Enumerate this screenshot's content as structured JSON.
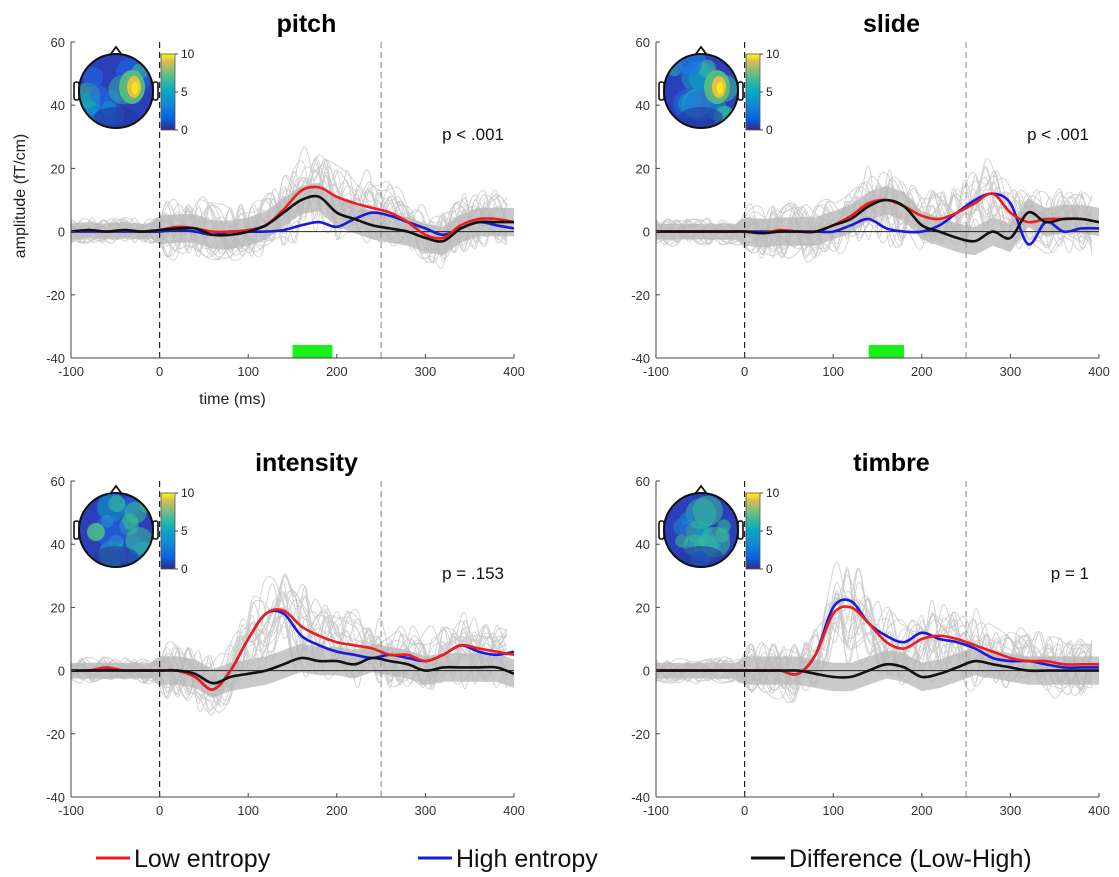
{
  "colors": {
    "low": "#ee1c1c",
    "high": "#1a1adb",
    "diff": "#111111",
    "band": "#b7b7b7",
    "subjects": "#c9c9c9",
    "sig": "#19f019"
  },
  "legend": [
    {
      "label": "Low entropy",
      "series": "low"
    },
    {
      "label": "High entropy",
      "series": "high"
    },
    {
      "label": "Difference (Low-High)",
      "series": "diff"
    }
  ],
  "chart_data": [
    {
      "type": "line",
      "title": "pitch",
      "xlabel": "time (ms)",
      "ylabel": "amplitude (fT/cm)",
      "xlim": [
        -100,
        400
      ],
      "ylim": [
        -40,
        60
      ],
      "xticks": [
        -100,
        0,
        100,
        200,
        300,
        400
      ],
      "yticks": [
        -40,
        -20,
        0,
        20,
        40,
        60
      ],
      "vlines": [
        0,
        250
      ],
      "annotation": "p < .001",
      "significant_window": [
        150,
        195
      ],
      "colorbar": {
        "min": 0,
        "mid": 5,
        "max": 10,
        "ticks": [
          "10",
          "5",
          "0"
        ]
      },
      "topomap": {
        "hotspot": "right",
        "intensity": "high"
      },
      "series": [
        {
          "key": "low",
          "name": "Low entropy",
          "x": [
            -100,
            -80,
            -60,
            -40,
            -20,
            0,
            20,
            40,
            60,
            80,
            100,
            120,
            140,
            160,
            180,
            200,
            220,
            240,
            260,
            280,
            300,
            320,
            340,
            360,
            380,
            400
          ],
          "values": [
            0,
            0.5,
            0,
            0.5,
            0,
            0.5,
            1.5,
            1,
            0,
            0,
            0.5,
            2,
            7,
            13,
            14,
            11,
            9,
            7.5,
            6,
            3,
            -1,
            -2,
            2,
            4,
            4,
            3
          ]
        },
        {
          "key": "high",
          "name": "High entropy",
          "x": [
            -100,
            -80,
            -60,
            -40,
            -20,
            0,
            20,
            40,
            60,
            80,
            100,
            120,
            140,
            160,
            180,
            200,
            220,
            240,
            260,
            280,
            300,
            320,
            340,
            360,
            380,
            400
          ],
          "values": [
            0,
            0,
            0,
            0,
            0,
            0,
            0.5,
            0,
            -1,
            0,
            0,
            0,
            0.5,
            2,
            3,
            1.5,
            4,
            6,
            5,
            3,
            1,
            -1,
            1,
            3,
            2,
            1
          ]
        },
        {
          "key": "diff",
          "name": "Difference (Low-High)",
          "x": [
            -100,
            -80,
            -60,
            -40,
            -20,
            0,
            20,
            40,
            60,
            80,
            100,
            120,
            140,
            160,
            180,
            200,
            220,
            240,
            260,
            280,
            300,
            320,
            340,
            360,
            380,
            400
          ],
          "values": [
            0,
            0.5,
            0,
            0.5,
            0,
            0.5,
            1,
            1,
            -1,
            -1,
            0,
            2,
            6,
            10,
            11,
            6,
            4,
            2,
            1,
            0,
            -2,
            -3,
            1,
            3,
            3,
            3
          ]
        }
      ]
    },
    {
      "type": "line",
      "title": "slide",
      "xlabel": "",
      "ylabel": "",
      "xlim": [
        -100,
        400
      ],
      "ylim": [
        -40,
        60
      ],
      "xticks": [
        -100,
        0,
        100,
        200,
        300,
        400
      ],
      "yticks": [
        -40,
        -20,
        0,
        20,
        40,
        60
      ],
      "vlines": [
        0,
        250
      ],
      "annotation": "p < .001",
      "significant_window": [
        140,
        180
      ],
      "colorbar": {
        "min": 0,
        "mid": 5,
        "max": 10,
        "ticks": [
          "10",
          "5",
          "0"
        ]
      },
      "topomap": {
        "hotspot": "right",
        "intensity": "high"
      },
      "series": [
        {
          "key": "low",
          "name": "Low entropy",
          "x": [
            -100,
            -80,
            -60,
            -40,
            -20,
            0,
            20,
            40,
            60,
            80,
            100,
            120,
            140,
            160,
            180,
            200,
            220,
            240,
            260,
            280,
            300,
            320,
            340,
            360,
            380,
            400
          ],
          "values": [
            0,
            0,
            0,
            0,
            0,
            0,
            -0.5,
            0.5,
            0,
            0,
            2,
            5,
            9,
            10,
            8,
            5,
            4,
            6,
            9,
            12,
            6,
            3,
            4,
            4,
            4,
            3
          ]
        },
        {
          "key": "high",
          "name": "High entropy",
          "x": [
            -100,
            -80,
            -60,
            -40,
            -20,
            0,
            20,
            40,
            60,
            80,
            100,
            120,
            140,
            160,
            180,
            200,
            220,
            240,
            260,
            280,
            300,
            320,
            340,
            360,
            380,
            400
          ],
          "values": [
            0,
            0,
            0,
            0,
            0,
            0,
            0,
            0,
            0,
            0,
            0,
            2,
            4,
            1,
            0,
            0,
            2,
            6,
            10,
            12,
            9,
            -4,
            3,
            0,
            1,
            1
          ]
        },
        {
          "key": "diff",
          "name": "Difference (Low-High)",
          "x": [
            -100,
            -80,
            -60,
            -40,
            -20,
            0,
            20,
            40,
            60,
            80,
            100,
            120,
            140,
            160,
            180,
            200,
            220,
            240,
            260,
            280,
            300,
            320,
            340,
            360,
            380,
            400
          ],
          "values": [
            0,
            0,
            0,
            0,
            0,
            0,
            -0.5,
            0,
            0,
            0,
            2,
            4,
            8,
            10,
            8,
            2,
            0,
            -2,
            -3,
            0,
            -2,
            6,
            3,
            4,
            4,
            3
          ]
        }
      ]
    },
    {
      "type": "line",
      "title": "intensity",
      "xlabel": "",
      "ylabel": "",
      "xlim": [
        -100,
        400
      ],
      "ylim": [
        -40,
        60
      ],
      "xticks": [
        -100,
        0,
        100,
        200,
        300,
        400
      ],
      "yticks": [
        -40,
        -20,
        0,
        20,
        40,
        60
      ],
      "vlines": [
        0,
        250
      ],
      "annotation": "p = .153",
      "significant_window": null,
      "colorbar": {
        "min": 0,
        "mid": 5,
        "max": 10,
        "ticks": [
          "10",
          "5",
          "0"
        ]
      },
      "topomap": {
        "hotspot": "left",
        "intensity": "low"
      },
      "series": [
        {
          "key": "low",
          "name": "Low entropy",
          "x": [
            -100,
            -80,
            -60,
            -40,
            -20,
            0,
            20,
            40,
            60,
            80,
            100,
            120,
            140,
            160,
            180,
            200,
            220,
            240,
            260,
            280,
            300,
            320,
            340,
            360,
            380,
            400
          ],
          "values": [
            0,
            0,
            1,
            0,
            0,
            0,
            0,
            -2,
            -6,
            0,
            10,
            18,
            19,
            14,
            11,
            9,
            8,
            7,
            5,
            5,
            3,
            5,
            8,
            7,
            6,
            5
          ]
        },
        {
          "key": "high",
          "name": "High entropy",
          "x": [
            -100,
            -80,
            -60,
            -40,
            -20,
            0,
            20,
            40,
            60,
            80,
            100,
            120,
            140,
            160,
            180,
            200,
            220,
            240,
            260,
            280,
            300,
            320,
            340,
            360,
            380,
            400
          ],
          "values": [
            0,
            0,
            0.5,
            0,
            0,
            0,
            0,
            -2,
            -6,
            0,
            10,
            18,
            18,
            11,
            8,
            6,
            5,
            4,
            5,
            4,
            3,
            5,
            8,
            6,
            5,
            6
          ]
        },
        {
          "key": "diff",
          "name": "Difference (Low-High)",
          "x": [
            -100,
            -80,
            -60,
            -40,
            -20,
            0,
            20,
            40,
            60,
            80,
            100,
            120,
            140,
            160,
            180,
            200,
            220,
            240,
            260,
            280,
            300,
            320,
            340,
            360,
            380,
            400
          ],
          "values": [
            0,
            0,
            0,
            0,
            0,
            0,
            0,
            -1,
            -4,
            -2,
            -1,
            0,
            2,
            4,
            3,
            3,
            2,
            4,
            3,
            2,
            0,
            1,
            1,
            1,
            1,
            -1
          ]
        }
      ]
    },
    {
      "type": "line",
      "title": "timbre",
      "xlabel": "",
      "ylabel": "",
      "xlim": [
        -100,
        400
      ],
      "ylim": [
        -40,
        60
      ],
      "xticks": [
        -100,
        0,
        100,
        200,
        300,
        400
      ],
      "yticks": [
        -40,
        -20,
        0,
        20,
        40,
        60
      ],
      "vlines": [
        0,
        250
      ],
      "annotation": "p = 1",
      "significant_window": null,
      "colorbar": {
        "min": 0,
        "mid": 5,
        "max": 10,
        "ticks": [
          "10",
          "5",
          "0"
        ]
      },
      "topomap": {
        "hotspot": "none",
        "intensity": "low"
      },
      "series": [
        {
          "key": "low",
          "name": "Low entropy",
          "x": [
            -100,
            -80,
            -60,
            -40,
            -20,
            0,
            20,
            40,
            60,
            80,
            100,
            120,
            140,
            160,
            180,
            200,
            220,
            240,
            260,
            280,
            300,
            320,
            340,
            360,
            380,
            400
          ],
          "values": [
            0,
            0,
            0,
            0,
            0,
            0,
            0,
            0,
            -1,
            5,
            18,
            20,
            15,
            9,
            7,
            10,
            11,
            10,
            8,
            6,
            4,
            3,
            3,
            2,
            2,
            2
          ]
        },
        {
          "key": "high",
          "name": "High entropy",
          "x": [
            -100,
            -80,
            -60,
            -40,
            -20,
            0,
            20,
            40,
            60,
            80,
            100,
            120,
            140,
            160,
            180,
            200,
            220,
            240,
            260,
            280,
            300,
            320,
            340,
            360,
            380,
            400
          ],
          "values": [
            0,
            0,
            0,
            0,
            0,
            0,
            0,
            0,
            -1,
            5,
            20,
            22,
            15,
            11,
            9,
            12,
            10,
            9,
            7,
            4,
            3,
            3,
            2,
            1,
            1,
            1
          ]
        },
        {
          "key": "diff",
          "name": "Difference (Low-High)",
          "x": [
            -100,
            -80,
            -60,
            -40,
            -20,
            0,
            20,
            40,
            60,
            80,
            100,
            120,
            140,
            160,
            180,
            200,
            220,
            240,
            260,
            280,
            300,
            320,
            340,
            360,
            380,
            400
          ],
          "values": [
            0,
            0,
            0,
            0,
            0,
            0,
            0,
            0,
            0,
            -1,
            -2,
            -2,
            0,
            2,
            1,
            -2,
            -1,
            1,
            3,
            2,
            1,
            0,
            0,
            0,
            0,
            0
          ]
        }
      ]
    }
  ]
}
